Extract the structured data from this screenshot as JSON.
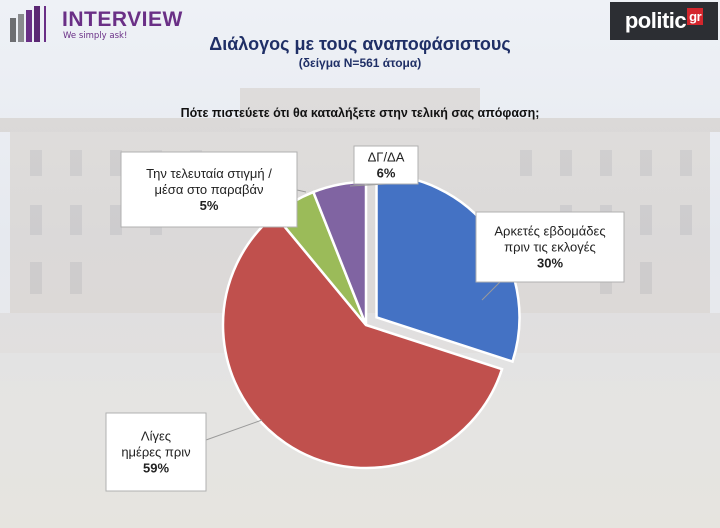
{
  "header": {
    "brand_name": "INTERVIEW",
    "brand_tagline": "We simply ask!",
    "partner_name": "politic",
    "partner_suffix": "gr"
  },
  "colors": {
    "brand_purple": "#6a2f86",
    "title_navy": "#1f2f66",
    "partner_red": "#d4262d"
  },
  "chart_data": {
    "type": "pie",
    "title": "Διάλογος με τους αναποφάσιστους",
    "subtitle": "(δείγμα Ν=561 άτομα)",
    "question": "Πότε πιστεύετε ότι θα καταλήξετε στην τελική σας απόφαση;",
    "slices": [
      {
        "lines": [
          "Αρκετές εβδομάδες",
          "πριν τις εκλογές"
        ],
        "value": 30,
        "value_label": "30%",
        "color": "#4472c4",
        "exploded": true
      },
      {
        "lines": [
          "Λίγες",
          "ημέρες πριν"
        ],
        "value": 59,
        "value_label": "59%",
        "color": "#c0504d",
        "exploded": false
      },
      {
        "lines": [
          "Την τελευταία στιγμή /",
          "μέσα στο παραβάν"
        ],
        "value": 5,
        "value_label": "5%",
        "color": "#9bbb59",
        "exploded": false
      },
      {
        "lines": [
          "ΔΓ/ΔΑ"
        ],
        "value": 6,
        "value_label": "6%",
        "color": "#8064a2",
        "exploded": false
      }
    ]
  }
}
